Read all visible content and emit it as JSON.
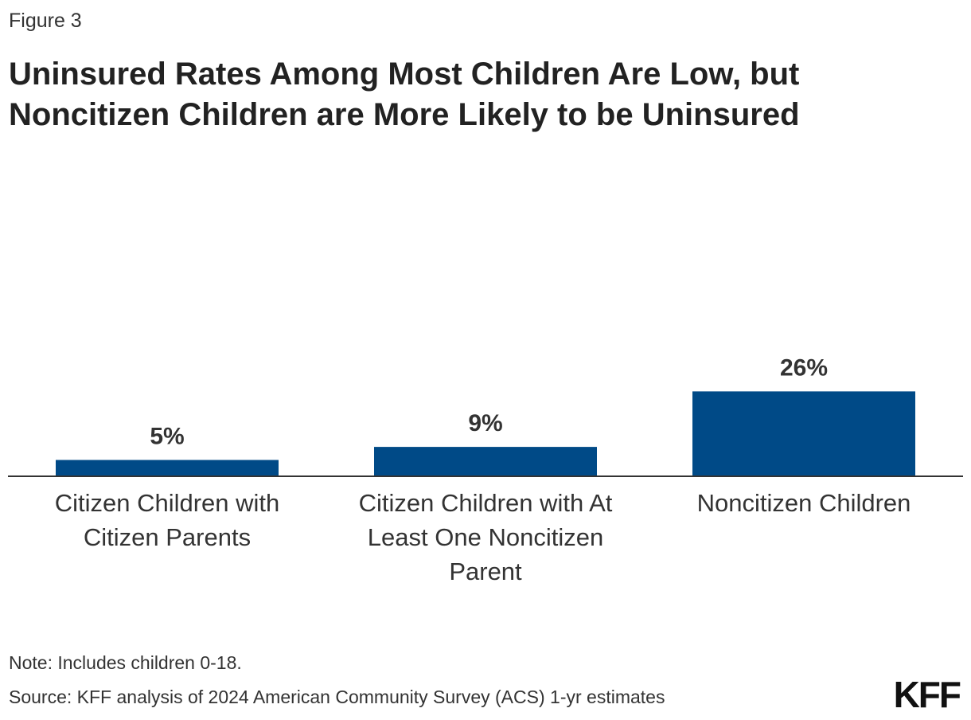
{
  "figure_label": "Figure 3",
  "title_lines": [
    "Uninsured Rates Among Most Children Are Low, but",
    "Noncitizen Children are More Likely to be Uninsured"
  ],
  "note": "Note: Includes children 0-18.",
  "source": "Source: KFF analysis of 2024 American Community Survey (ACS) 1-yr estimates",
  "logo": "KFF",
  "category_label_lines": [
    [
      "Citizen Children with",
      "Citizen Parents"
    ],
    [
      "Citizen Children with At",
      "Least One Noncitizen",
      "Parent"
    ],
    [
      "Noncitizen Children"
    ]
  ],
  "colors": {
    "bar": "#004A87",
    "axis": "#333333",
    "label": "#333333"
  },
  "chart_data": {
    "type": "bar",
    "categories": [
      "Citizen Children with Citizen Parents",
      "Citizen Children with At Least One Noncitizen Parent",
      "Noncitizen Children"
    ],
    "values": [
      5,
      9,
      26
    ],
    "value_labels": [
      "5%",
      "9%",
      "26%"
    ],
    "title": "Uninsured Rates Among Most Children Are Low, but Noncitizen Children are More Likely to be Uninsured",
    "xlabel": "",
    "ylabel": "",
    "ylim": [
      0,
      100
    ],
    "grid": false,
    "legend": "none"
  }
}
